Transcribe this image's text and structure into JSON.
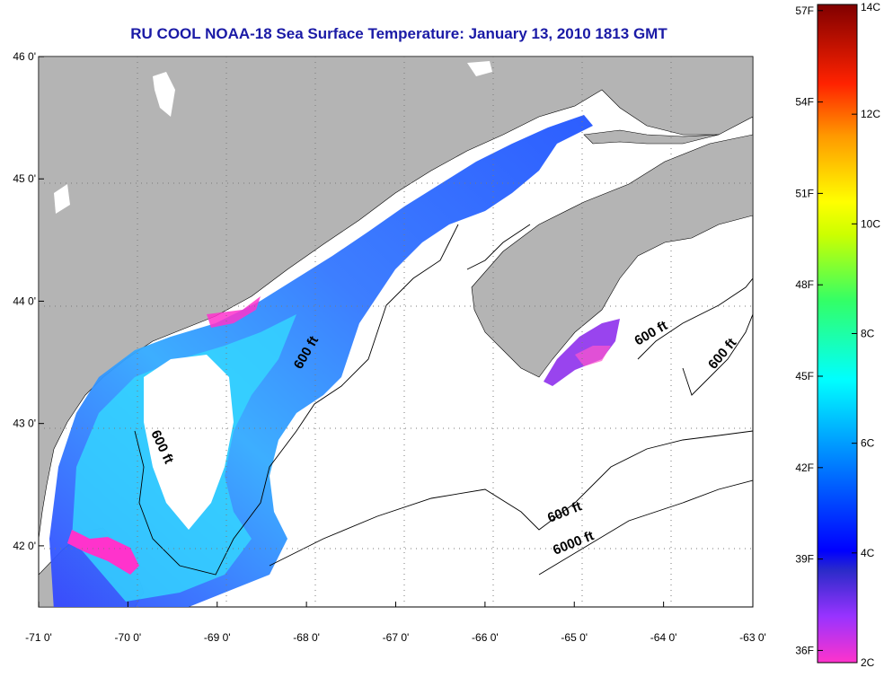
{
  "title": "RU COOL  NOAA-18  Sea Surface Temperature:  January 13, 2010 1813 GMT",
  "map": {
    "lon_labels": [
      "-71 0'",
      "-70 0'",
      "-69 0'",
      "-68 0'",
      "-67 0'",
      "-66 0'",
      "-65 0'",
      "-64 0'",
      "-63 0'"
    ],
    "lon_values": [
      -71,
      -70,
      -69,
      -68,
      -67,
      -66,
      -65,
      -64,
      -63
    ],
    "lat_labels": [
      "46 0'",
      "45 0'",
      "44 0'",
      "43 0'",
      "42 0'"
    ],
    "lat_values": [
      46,
      45,
      44,
      43,
      42
    ],
    "contour_labels": [
      "600 ft",
      "600 ft",
      "600 ft",
      "600 ft",
      "600 ft",
      "6000 ft"
    ],
    "colors": {
      "land": "#b4b4b4",
      "no_data": "#ffffff",
      "grid": "#888888"
    }
  },
  "colorbar": {
    "f_labels": [
      "57F",
      "54F",
      "51F",
      "48F",
      "45F",
      "42F",
      "39F",
      "36F"
    ],
    "c_labels": [
      "14C",
      "12C",
      "10C",
      "8C",
      "6C",
      "4C",
      "2C"
    ],
    "range_c": [
      2,
      14
    ],
    "stops": [
      "#ff33cc",
      "#9933ff",
      "#3333cc",
      "#0000ff",
      "#0099ff",
      "#00ffff",
      "#33ff66",
      "#ccff00",
      "#ffff00",
      "#ff9900",
      "#ff2200",
      "#cc0000",
      "#8b0000"
    ]
  }
}
